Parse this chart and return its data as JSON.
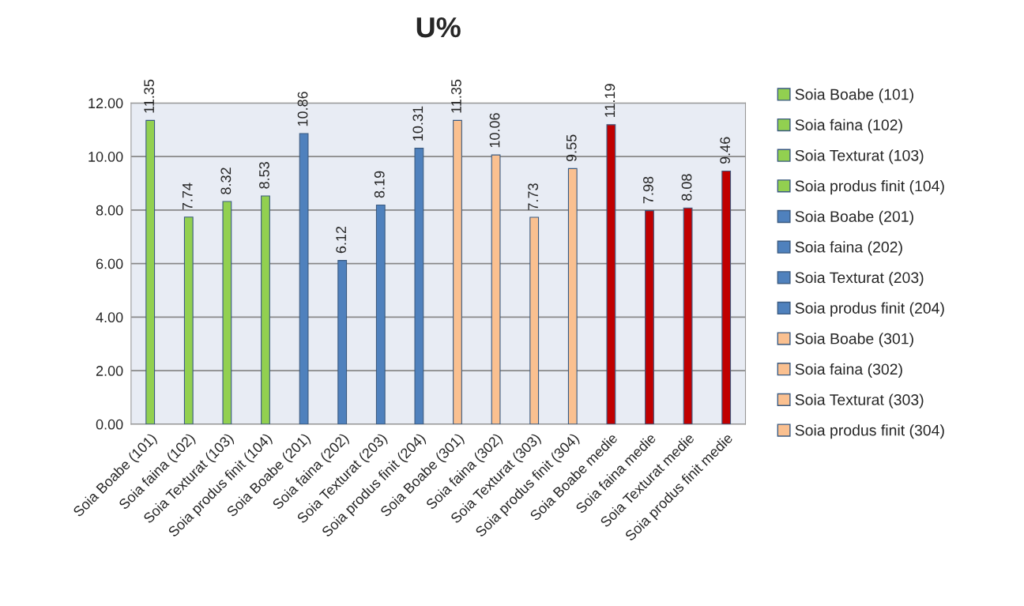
{
  "chart_data": {
    "type": "bar",
    "title": "U%",
    "categories": [
      "Soia Boabe (101)",
      "Soia faina (102)",
      "Soia Texturat (103)",
      "Soia produs finit (104)",
      "Soia Boabe (201)",
      "Soia faina (202)",
      "Soia Texturat (203)",
      "Soia produs finit (204)",
      "Soia Boabe (301)",
      "Soia faina (302)",
      "Soia Texturat (303)",
      "Soia produs finit (304)",
      "Soia Boabe medie",
      "Soia faina medie",
      "Soia Texturat medie",
      "Soia produs finit medie"
    ],
    "series": [
      {
        "name": "Soia Boabe (101)",
        "color": "#92d050",
        "values": [
          11.35,
          null,
          null,
          null,
          null,
          null,
          null,
          null,
          null,
          null,
          null,
          null,
          null,
          null,
          null,
          null
        ]
      },
      {
        "name": "Soia faina (102)",
        "color": "#92d050",
        "values": [
          null,
          7.74,
          null,
          null,
          null,
          null,
          null,
          null,
          null,
          null,
          null,
          null,
          null,
          null,
          null,
          null
        ]
      },
      {
        "name": "Soia Texturat (103)",
        "color": "#92d050",
        "values": [
          null,
          null,
          8.32,
          null,
          null,
          null,
          null,
          null,
          null,
          null,
          null,
          null,
          null,
          null,
          null,
          null
        ]
      },
      {
        "name": "Soia produs finit (104)",
        "color": "#92d050",
        "values": [
          null,
          null,
          null,
          8.53,
          null,
          null,
          null,
          null,
          null,
          null,
          null,
          null,
          null,
          null,
          null,
          null
        ]
      },
      {
        "name": "Soia Boabe (201)",
        "color": "#4f81bd",
        "values": [
          null,
          null,
          null,
          null,
          10.86,
          null,
          null,
          null,
          null,
          null,
          null,
          null,
          null,
          null,
          null,
          null
        ]
      },
      {
        "name": "Soia faina (202)",
        "color": "#4f81bd",
        "values": [
          null,
          null,
          null,
          null,
          null,
          6.12,
          null,
          null,
          null,
          null,
          null,
          null,
          null,
          null,
          null,
          null
        ]
      },
      {
        "name": "Soia Texturat (203)",
        "color": "#4f81bd",
        "values": [
          null,
          null,
          null,
          null,
          null,
          null,
          8.19,
          null,
          null,
          null,
          null,
          null,
          null,
          null,
          null,
          null
        ]
      },
      {
        "name": "Soia produs finit (204)",
        "color": "#4f81bd",
        "values": [
          null,
          null,
          null,
          null,
          null,
          null,
          null,
          10.31,
          null,
          null,
          null,
          null,
          null,
          null,
          null,
          null
        ]
      },
      {
        "name": "Soia Boabe (301)",
        "color": "#fac090",
        "values": [
          null,
          null,
          null,
          null,
          null,
          null,
          null,
          null,
          11.35,
          null,
          null,
          null,
          null,
          null,
          null,
          null
        ]
      },
      {
        "name": "Soia faina (302)",
        "color": "#fac090",
        "values": [
          null,
          null,
          null,
          null,
          null,
          null,
          null,
          null,
          null,
          10.06,
          null,
          null,
          null,
          null,
          null,
          null
        ]
      },
      {
        "name": "Soia Texturat (303)",
        "color": "#fac090",
        "values": [
          null,
          null,
          null,
          null,
          null,
          null,
          null,
          null,
          null,
          null,
          7.73,
          null,
          null,
          null,
          null,
          null
        ]
      },
      {
        "name": "Soia produs finit (304)",
        "color": "#fac090",
        "values": [
          null,
          null,
          null,
          null,
          null,
          null,
          null,
          null,
          null,
          null,
          null,
          9.55,
          null,
          null,
          null,
          null
        ]
      },
      {
        "color": "#c00000",
        "values": [
          null,
          null,
          null,
          null,
          null,
          null,
          null,
          null,
          null,
          null,
          null,
          null,
          11.19,
          7.98,
          8.08,
          9.46
        ]
      }
    ],
    "ylim": [
      0,
      12
    ],
    "yticks": [
      {
        "value": 0,
        "label": "0.00"
      },
      {
        "value": 2,
        "label": "2.00"
      },
      {
        "value": 4,
        "label": "4.00"
      },
      {
        "value": 6,
        "label": "6.00"
      },
      {
        "value": 8,
        "label": "8.00"
      },
      {
        "value": 10,
        "label": "10.00"
      },
      {
        "value": 12,
        "label": "12.00"
      }
    ],
    "grid": "y",
    "legend": "right",
    "data_labels": true
  }
}
